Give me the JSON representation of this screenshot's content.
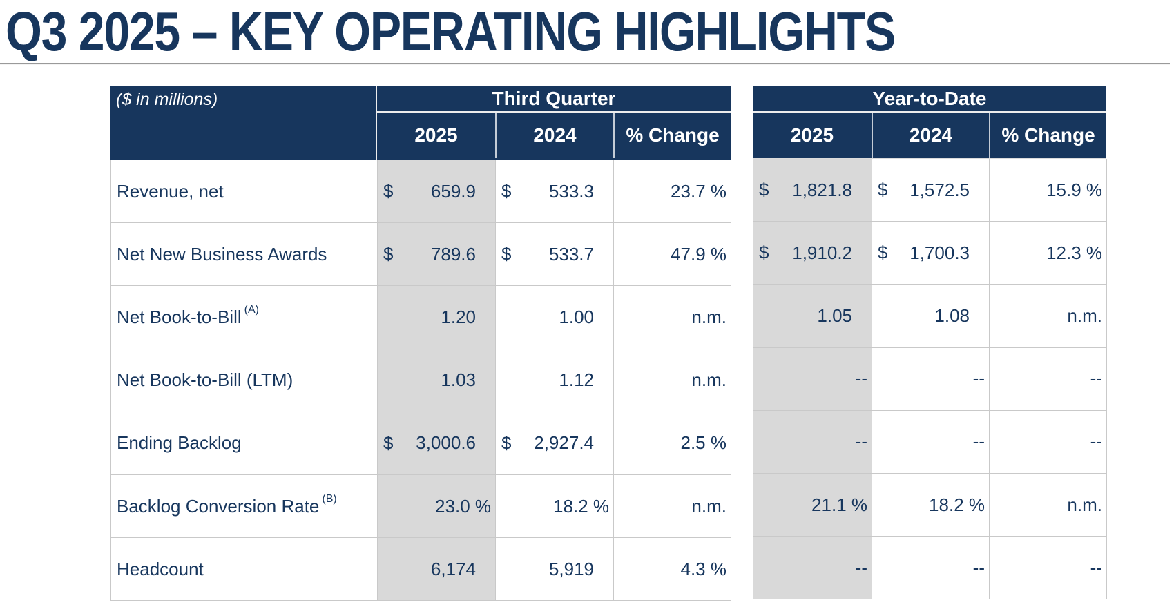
{
  "title": "Q3 2025 – KEY OPERATING HIGHLIGHTS",
  "colors": {
    "header_navy": "#17365D",
    "body_text_navy": "#17365D",
    "shaded_2025_column": "#D9D9D9",
    "gridline_gray": "#C9C9C9",
    "header_text": "#FFFFFF"
  },
  "table": {
    "units_note": "($ in millions)",
    "groups": [
      {
        "label": "Third Quarter",
        "columns": [
          "2025",
          "2024",
          "% Change"
        ]
      },
      {
        "label": "Year-to-Date",
        "columns": [
          "2025",
          "2024",
          "% Change"
        ]
      }
    ],
    "rows": [
      {
        "label": "Revenue, net",
        "sup": "",
        "tq": [
          {
            "cur": "$",
            "v": "659.9",
            "flush": false
          },
          {
            "cur": "$",
            "v": "533.3",
            "flush": false
          },
          {
            "cur": "",
            "v": "23.7 %",
            "flush": true
          }
        ],
        "ytd": [
          {
            "cur": "$",
            "v": "1,821.8",
            "flush": false
          },
          {
            "cur": "$",
            "v": "1,572.5",
            "flush": false
          },
          {
            "cur": "",
            "v": "15.9 %",
            "flush": true
          }
        ]
      },
      {
        "label": "Net New Business Awards",
        "sup": "",
        "tq": [
          {
            "cur": "$",
            "v": "789.6",
            "flush": false
          },
          {
            "cur": "$",
            "v": "533.7",
            "flush": false
          },
          {
            "cur": "",
            "v": "47.9 %",
            "flush": true
          }
        ],
        "ytd": [
          {
            "cur": "$",
            "v": "1,910.2",
            "flush": false
          },
          {
            "cur": "$",
            "v": "1,700.3",
            "flush": false
          },
          {
            "cur": "",
            "v": "12.3 %",
            "flush": true
          }
        ]
      },
      {
        "label": "Net Book-to-Bill",
        "sup": "(A)",
        "tq": [
          {
            "cur": "",
            "v": "1.20",
            "flush": false
          },
          {
            "cur": "",
            "v": "1.00",
            "flush": false
          },
          {
            "cur": "",
            "v": "n.m.",
            "flush": true
          }
        ],
        "ytd": [
          {
            "cur": "",
            "v": "1.05",
            "flush": false
          },
          {
            "cur": "",
            "v": "1.08",
            "flush": false
          },
          {
            "cur": "",
            "v": "n.m.",
            "flush": true
          }
        ]
      },
      {
        "label": "Net Book-to-Bill (LTM)",
        "sup": "",
        "tq": [
          {
            "cur": "",
            "v": "1.03",
            "flush": false
          },
          {
            "cur": "",
            "v": "1.12",
            "flush": false
          },
          {
            "cur": "",
            "v": "n.m.",
            "flush": true
          }
        ],
        "ytd": [
          {
            "cur": "",
            "v": "--",
            "flush": true
          },
          {
            "cur": "",
            "v": "--",
            "flush": true
          },
          {
            "cur": "",
            "v": "--",
            "flush": true
          }
        ]
      },
      {
        "label": "Ending Backlog",
        "sup": "",
        "tq": [
          {
            "cur": "$",
            "v": "3,000.6",
            "flush": false
          },
          {
            "cur": "$",
            "v": "2,927.4",
            "flush": false
          },
          {
            "cur": "",
            "v": "2.5 %",
            "flush": true
          }
        ],
        "ytd": [
          {
            "cur": "",
            "v": "--",
            "flush": true
          },
          {
            "cur": "",
            "v": "--",
            "flush": true
          },
          {
            "cur": "",
            "v": "--",
            "flush": true
          }
        ]
      },
      {
        "label": "Backlog Conversion Rate",
        "sup": "(B)",
        "tq": [
          {
            "cur": "",
            "v": "23.0 %",
            "flush": true
          },
          {
            "cur": "",
            "v": "18.2 %",
            "flush": true
          },
          {
            "cur": "",
            "v": "n.m.",
            "flush": true
          }
        ],
        "ytd": [
          {
            "cur": "",
            "v": "21.1 %",
            "flush": true
          },
          {
            "cur": "",
            "v": "18.2 %",
            "flush": true
          },
          {
            "cur": "",
            "v": "n.m.",
            "flush": true
          }
        ]
      },
      {
        "label": "Headcount",
        "sup": "",
        "tq": [
          {
            "cur": "",
            "v": "6,174",
            "flush": false
          },
          {
            "cur": "",
            "v": "5,919",
            "flush": false
          },
          {
            "cur": "",
            "v": "4.3 %",
            "flush": true
          }
        ],
        "ytd": [
          {
            "cur": "",
            "v": "--",
            "flush": true
          },
          {
            "cur": "",
            "v": "--",
            "flush": true
          },
          {
            "cur": "",
            "v": "--",
            "flush": true
          }
        ]
      }
    ]
  }
}
